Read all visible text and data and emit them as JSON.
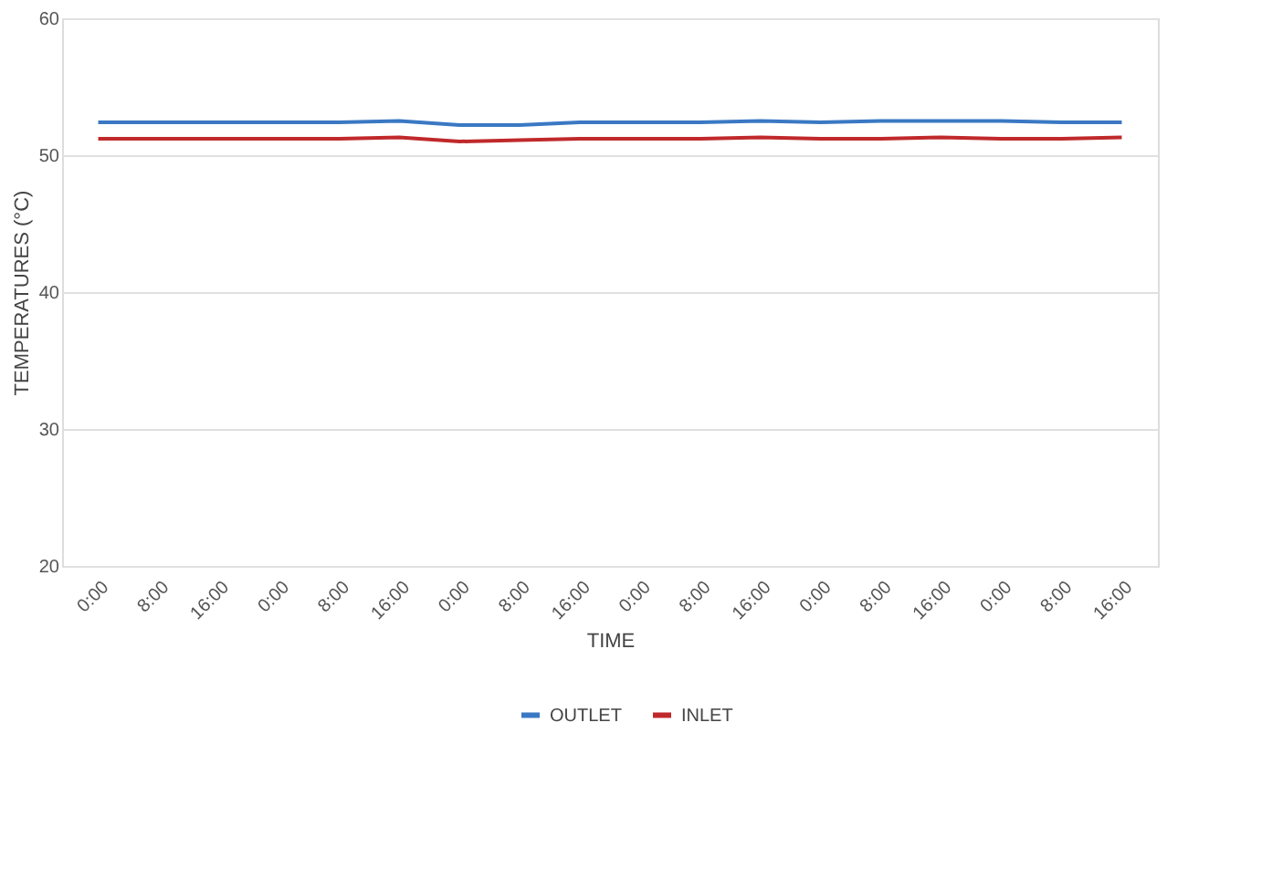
{
  "chart_data": {
    "type": "line",
    "xlabel": "TIME",
    "ylabel": "TEMPERATURES (°C)",
    "categories": [
      "0:00",
      "8:00",
      "16:00",
      "0:00",
      "8:00",
      "16:00",
      "0:00",
      "8:00",
      "16:00",
      "0:00",
      "8:00",
      "16:00",
      "0:00",
      "8:00",
      "16:00",
      "0:00",
      "8:00",
      "16:00"
    ],
    "series": [
      {
        "name": "OUTLET",
        "color": "#3a78c3",
        "values": [
          52.4,
          52.4,
          52.4,
          52.4,
          52.4,
          52.5,
          52.2,
          52.2,
          52.4,
          52.4,
          52.4,
          52.5,
          52.4,
          52.5,
          52.5,
          52.5,
          52.4,
          52.4
        ]
      },
      {
        "name": "INLET",
        "color": "#c0292b",
        "values": [
          51.2,
          51.2,
          51.2,
          51.2,
          51.2,
          51.3,
          51.0,
          51.1,
          51.2,
          51.2,
          51.2,
          51.3,
          51.2,
          51.2,
          51.3,
          51.2,
          51.2,
          51.3
        ]
      }
    ],
    "ylim": [
      20,
      60
    ],
    "yticks": [
      20,
      30,
      40,
      50,
      60
    ],
    "grid": "y",
    "legend": "bottom",
    "marker": "none",
    "line_style": "solid"
  }
}
